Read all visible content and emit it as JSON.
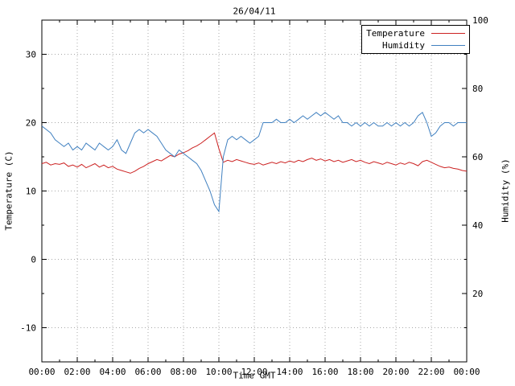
{
  "colors": {
    "temperature": "#cc2222",
    "humidity": "#4080c0",
    "grid": "#a8a8a8",
    "axis": "#000000",
    "background": "#ffffff",
    "text": "#000000"
  },
  "chart_data": {
    "type": "line",
    "title": "26/04/11",
    "xlabel": "Time GMT",
    "ylabel": "Temperature (C)",
    "y2label": "Humidity (%)",
    "x_range": [
      0,
      24
    ],
    "y1_range": [
      -15,
      35
    ],
    "y2_range": [
      0,
      100
    ],
    "grid": true,
    "legend_position": "top-right",
    "x_tick_values": [
      0,
      2,
      4,
      6,
      8,
      10,
      12,
      14,
      16,
      18,
      20,
      22,
      24
    ],
    "x_tick_labels": [
      "00:00",
      "02:00",
      "04:00",
      "06:00",
      "08:00",
      "10:00",
      "12:00",
      "14:00",
      "16:00",
      "18:00",
      "20:00",
      "22:00",
      "00:00"
    ],
    "y1_ticks": [
      -10,
      0,
      10,
      20,
      30
    ],
    "y2_ticks": [
      20,
      40,
      60,
      80,
      100
    ],
    "x_start_hour": 0,
    "x_step_hours": 0.25,
    "series": [
      {
        "name": "Temperature",
        "axis": "y1",
        "color_key": "temperature",
        "values": [
          14.0,
          14.2,
          13.8,
          14.0,
          13.9,
          14.1,
          13.6,
          13.8,
          13.5,
          13.9,
          13.4,
          13.7,
          14.0,
          13.5,
          13.8,
          13.4,
          13.6,
          13.2,
          13.0,
          12.8,
          12.6,
          12.9,
          13.3,
          13.6,
          14.0,
          14.3,
          14.6,
          14.4,
          14.8,
          15.2,
          15.0,
          15.4,
          15.6,
          15.9,
          16.3,
          16.6,
          17.0,
          17.5,
          18.0,
          18.5,
          16.2,
          14.2,
          14.5,
          14.3,
          14.6,
          14.4,
          14.2,
          14.0,
          13.9,
          14.1,
          13.8,
          14.0,
          14.2,
          14.0,
          14.3,
          14.1,
          14.4,
          14.2,
          14.5,
          14.3,
          14.6,
          14.8,
          14.5,
          14.7,
          14.4,
          14.6,
          14.3,
          14.5,
          14.2,
          14.4,
          14.6,
          14.3,
          14.5,
          14.2,
          14.0,
          14.3,
          14.1,
          13.9,
          14.2,
          14.0,
          13.8,
          14.1,
          13.9,
          14.2,
          14.0,
          13.7,
          14.3,
          14.5,
          14.2,
          13.9,
          13.6,
          13.4,
          13.5,
          13.3,
          13.2,
          13.0,
          12.9
        ]
      },
      {
        "name": "Humidity",
        "axis": "y2",
        "color_key": "humidity",
        "values": [
          69,
          68,
          67,
          65,
          64,
          63,
          64,
          62,
          63,
          62,
          64,
          63,
          62,
          64,
          63,
          62,
          63,
          65,
          62,
          61,
          64,
          67,
          68,
          67,
          68,
          67,
          66,
          64,
          62,
          61,
          60,
          62,
          61,
          60,
          59,
          58,
          56,
          53,
          50,
          46,
          44,
          60,
          65,
          66,
          65,
          66,
          65,
          64,
          65,
          66,
          70,
          70,
          70,
          71,
          70,
          70,
          71,
          70,
          71,
          72,
          71,
          72,
          73,
          72,
          73,
          72,
          71,
          72,
          70,
          70,
          69,
          70,
          69,
          70,
          69,
          70,
          69,
          69,
          70,
          69,
          70,
          69,
          70,
          69,
          70,
          72,
          73,
          70,
          66,
          67,
          69,
          70,
          70,
          69,
          70,
          70,
          70
        ]
      }
    ]
  }
}
